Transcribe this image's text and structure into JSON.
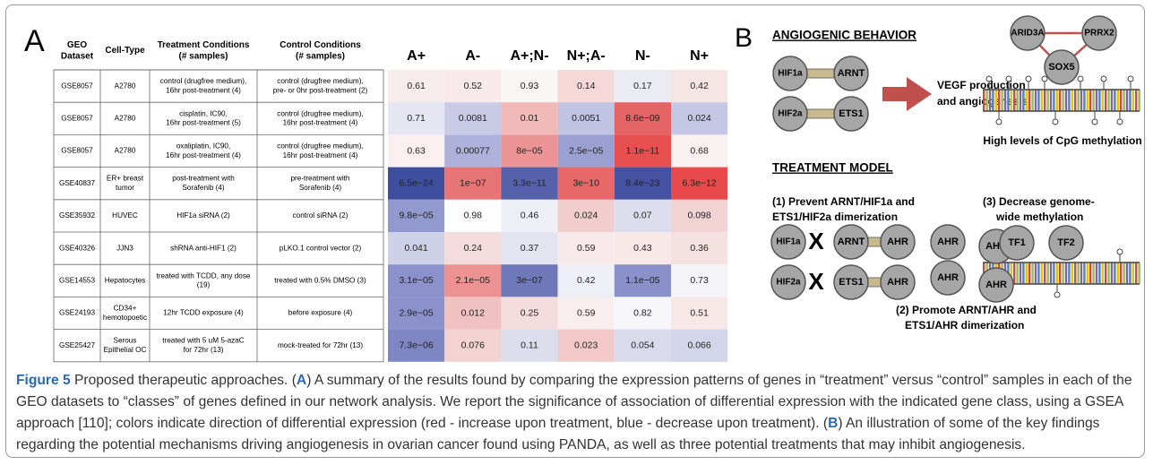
{
  "panel_a": {
    "letter": "A",
    "table": {
      "headers": [
        [
          "GEO",
          "Dataset"
        ],
        [
          "Cell-Type"
        ],
        [
          "Treatment Conditions",
          "(# samples)"
        ],
        [
          "Control Conditions",
          "(# samples)"
        ]
      ],
      "rows": [
        [
          [
            "GSE8057"
          ],
          [
            "A2780"
          ],
          [
            "control (drugfree medium),",
            "16hr post-treatment (4)"
          ],
          [
            "control (drugfree medium),",
            "pre- or 0hr post-treatment (2)"
          ]
        ],
        [
          [
            "GSE8057"
          ],
          [
            "A2780"
          ],
          [
            "cisplatin, IC90,",
            "16hr post-treatment (5)"
          ],
          [
            "control (drugfree medium),",
            "16hr post-treatment (4)"
          ]
        ],
        [
          [
            "GSE8057"
          ],
          [
            "A2780"
          ],
          [
            "oxaliplatin, IC90,",
            "16hr post-treatment (4)"
          ],
          [
            "control (drugfree medium),",
            "16hr post-treatment (4)"
          ]
        ],
        [
          [
            "GSE40837"
          ],
          [
            "ER+ breast",
            "tumor"
          ],
          [
            "post-treatment with",
            "Sorafenib (4)"
          ],
          [
            "pre-treatment with",
            "Sorafenib (4)"
          ]
        ],
        [
          [
            "GSE35932"
          ],
          [
            "HUVEC"
          ],
          [
            "HIF1a siRNA (2)"
          ],
          [
            "control siRNA (2)"
          ]
        ],
        [
          [
            "GSE40326"
          ],
          [
            "JJN3"
          ],
          [
            "shRNA anti-HIF1 (2)"
          ],
          [
            "pLKO.1 control vector (2)"
          ]
        ],
        [
          [
            "GSE14553"
          ],
          [
            "Hepatocytes"
          ],
          [
            "treated with TCDD, any dose",
            "(19)"
          ],
          [
            "treated with 0.5% DMSO (3)"
          ]
        ],
        [
          [
            "GSE24193"
          ],
          [
            "CD34+",
            "hemotopoetic"
          ],
          [
            "12hr TCDD exposure (4)"
          ],
          [
            "before exposure (4)"
          ]
        ],
        [
          [
            "GSE25427"
          ],
          [
            "Serous",
            "Epithelial OC"
          ],
          [
            "treated with 5 uM 5-azaC",
            "for 72hr (13)"
          ],
          [
            "mock-treated for 72hr (13)"
          ]
        ]
      ]
    },
    "heatmap": {
      "columns": [
        "A+",
        "A-",
        "A+;N-",
        "N+;A-",
        "N-",
        "N+"
      ],
      "rows": [
        {
          "values": [
            "0.61",
            "0.52",
            "0.93",
            "0.14",
            "0.17",
            "0.42"
          ],
          "colors": [
            "#f8eded",
            "#f8eaea",
            "#fbf6f6",
            "#f6d8d8",
            "#ebebf4",
            "#f6e5e5"
          ]
        },
        {
          "values": [
            "0.71",
            "0.0081",
            "0.01",
            "0.0051",
            "8.6e−09",
            "0.024"
          ],
          "colors": [
            "#e6e6f2",
            "#c9cbe6",
            "#f2b9b9",
            "#c0c3e2",
            "#e46466",
            "#c5c8e4"
          ]
        },
        {
          "values": [
            "0.63",
            "0.00077",
            "8e−05",
            "2.5e−05",
            "1.1e−11",
            "0.68"
          ],
          "colors": [
            "#faf0f0",
            "#aeb2da",
            "#ec9495",
            "#9aa0d2",
            "#e8504f",
            "#f9f0f0"
          ]
        },
        {
          "values": [
            "6.5e−24",
            "1e−07",
            "3.3e−11",
            "3e−10",
            "8.4e−23",
            "6.3e−12"
          ],
          "colors": [
            "#3e4e9f",
            "#e87576",
            "#5661ab",
            "#e8686a",
            "#4452a1",
            "#e84a4b"
          ]
        },
        {
          "values": [
            "9.8e−05",
            "0.98",
            "0.46",
            "0.024",
            "0.07",
            "0.098"
          ],
          "colors": [
            "#9299cf",
            "#fdfdfd",
            "#efeff6",
            "#f2cdcd",
            "#dcdded",
            "#f1d3d3"
          ]
        },
        {
          "values": [
            "0.041",
            "0.24",
            "0.37",
            "0.59",
            "0.43",
            "0.36"
          ],
          "colors": [
            "#cfd1e8",
            "#f4dcdc",
            "#e4e4f1",
            "#f8eaea",
            "#f8e8e8",
            "#f6e1e1"
          ]
        },
        {
          "values": [
            "3.1e−05",
            "2.1e−05",
            "3e−07",
            "0.42",
            "1.1e−05",
            "0.73"
          ],
          "colors": [
            "#8a91cb",
            "#ec9293",
            "#6f78b9",
            "#efeff7",
            "#8990ca",
            "#f4f4f9"
          ]
        },
        {
          "values": [
            "2.9e−05",
            "0.012",
            "0.25",
            "0.59",
            "0.82",
            "0.51"
          ],
          "colors": [
            "#8b92cb",
            "#f0c1c1",
            "#f5dcdc",
            "#f9eeee",
            "#f6f6fb",
            "#f7e8e8"
          ]
        },
        {
          "values": [
            "7.3e−06",
            "0.076",
            "0.11",
            "0.023",
            "0.054",
            "0.066"
          ],
          "colors": [
            "#7e86c4",
            "#f3d2d2",
            "#dcdeee",
            "#f2c8c8",
            "#d9dbec",
            "#d3d5ea"
          ]
        }
      ]
    }
  },
  "panel_b": {
    "letter": "B",
    "angiogenic_title": "ANGIOGENIC BEHAVIOR",
    "vegf_text": [
      "VEGF production",
      "and angiogenesis"
    ],
    "methylation_text": "High levels of CpG methylation",
    "treatment_title": "TREATMENT MODEL",
    "step1": [
      "(1) Prevent ARNT/HIF1a and",
      "ETS1/HIF2a dimerization"
    ],
    "step2": [
      "(2) Promote ARNT/AHR and",
      "ETS1/AHR dimerization"
    ],
    "step3": [
      "(3) Decrease genome-",
      "wide methylation"
    ],
    "nodes": [
      "HIF1a",
      "ARNT",
      "HIF2a",
      "ETS1",
      "ARID3A",
      "PRRX2",
      "SOX5",
      "HIF1a",
      "ARNT",
      "AHR",
      "AHR",
      "AHR",
      "HIF2a",
      "ETS1",
      "AHR",
      "AHR",
      "AHR",
      "TF1",
      "TF2"
    ],
    "x_marks": [
      "X",
      "X"
    ]
  },
  "caption": {
    "label": "Figure 5",
    "intro": " Proposed therapeutic approaches. (",
    "a_letter": "A",
    "a_text": ") A summary of the results found by comparing the expression patterns of genes in “treatment” versus “control” samples in each of the GEO datasets to “classes” of genes defined in our network analysis. We report the significance of association of differential expression with the indicated gene class, using a GSEA approach [110]; colors indicate direction of differential expression (red - increase upon treatment, blue - decrease upon treatment). (",
    "b_letter": "B",
    "b_text": ") An illustration of some of the key findings regarding the potential mechanisms driving angiogenesis in ovarian cancer found using PANDA, as well as three potential treatments that may inhibit angiogenesis."
  }
}
